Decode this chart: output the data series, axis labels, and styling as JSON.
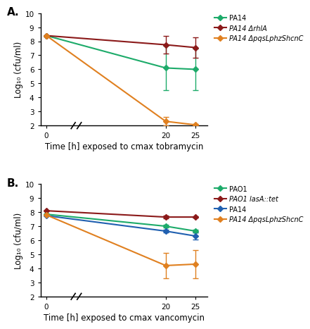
{
  "panel_A": {
    "title": "A.",
    "xlabel": "Time [h] exposed to cmax tobramycin",
    "ylabel": "Log₁₀ (cfu/ml)",
    "ylim": [
      2,
      10
    ],
    "yticks": [
      2,
      3,
      4,
      5,
      6,
      7,
      8,
      9,
      10
    ],
    "series": [
      {
        "label": "PA14",
        "label_parts": [
          [
            "PA14",
            "normal"
          ]
        ],
        "color": "#1dab6a",
        "x": [
          0,
          20,
          25
        ],
        "y": [
          8.4,
          6.1,
          6.0
        ],
        "yerr_lo": [
          0.0,
          1.6,
          1.5
        ],
        "yerr_hi": [
          0.0,
          1.6,
          1.5
        ]
      },
      {
        "label": "PA14 ΔrhlA",
        "label_parts": [
          [
            "PA14 Δ",
            "normal"
          ],
          [
            "rhlA",
            "italic"
          ]
        ],
        "color": "#8b1a1a",
        "x": [
          0,
          20,
          25
        ],
        "y": [
          8.4,
          7.75,
          7.55
        ],
        "yerr_lo": [
          0.0,
          0.65,
          0.75
        ],
        "yerr_hi": [
          0.0,
          0.65,
          0.75
        ]
      },
      {
        "label": "PA14 ΔpqsLphzShcnC",
        "label_parts": [
          [
            "PA14 Δ",
            "normal"
          ],
          [
            "pqsLphzShcnC",
            "italic"
          ]
        ],
        "color": "#e08020",
        "x": [
          0,
          20,
          25
        ],
        "y": [
          8.4,
          2.3,
          2.05
        ],
        "yerr_lo": [
          0.0,
          0.3,
          0.05
        ],
        "yerr_hi": [
          0.0,
          0.3,
          0.05
        ]
      }
    ]
  },
  "panel_B": {
    "title": "B.",
    "xlabel": "Time [h] exposed to cmax vancomycin",
    "ylabel": "Log₁₀ (cfu/ml)",
    "ylim": [
      2,
      10
    ],
    "yticks": [
      2,
      3,
      4,
      5,
      6,
      7,
      8,
      9,
      10
    ],
    "series": [
      {
        "label": "PAO1",
        "label_parts": [
          [
            "PAO1",
            "normal"
          ]
        ],
        "color": "#1dab6a",
        "x": [
          0,
          20,
          25
        ],
        "y": [
          7.85,
          7.0,
          6.65
        ],
        "yerr_lo": [
          0.0,
          0.12,
          0.1
        ],
        "yerr_hi": [
          0.0,
          0.12,
          0.1
        ]
      },
      {
        "label": "PAO1 lasA::tet",
        "label_parts": [
          [
            "PAO1 ",
            "normal"
          ],
          [
            "lasA::tet",
            "italic"
          ]
        ],
        "color": "#8b1a1a",
        "x": [
          0,
          20,
          25
        ],
        "y": [
          8.1,
          7.65,
          7.65
        ],
        "yerr_lo": [
          0.0,
          0.1,
          0.05
        ],
        "yerr_hi": [
          0.0,
          0.1,
          0.05
        ]
      },
      {
        "label": "PA14",
        "label_parts": [
          [
            "PA14",
            "normal"
          ]
        ],
        "color": "#2060b0",
        "x": [
          0,
          20,
          25
        ],
        "y": [
          7.75,
          6.65,
          6.3
        ],
        "yerr_lo": [
          0.0,
          0.1,
          0.25
        ],
        "yerr_hi": [
          0.0,
          0.1,
          0.25
        ]
      },
      {
        "label": "PA14 ΔpqsLphzShcnC",
        "label_parts": [
          [
            "PA14 Δ",
            "normal"
          ],
          [
            "pqsLphzShcnC",
            "italic"
          ]
        ],
        "color": "#e08020",
        "x": [
          0,
          20,
          25
        ],
        "y": [
          7.8,
          4.2,
          4.3
        ],
        "yerr_lo": [
          0.0,
          0.9,
          1.0
        ],
        "yerr_hi": [
          0.0,
          0.9,
          1.0
        ]
      }
    ]
  },
  "marker": "D",
  "markersize": 4,
  "linewidth": 1.5,
  "capsize": 3,
  "elinewidth": 1.0
}
